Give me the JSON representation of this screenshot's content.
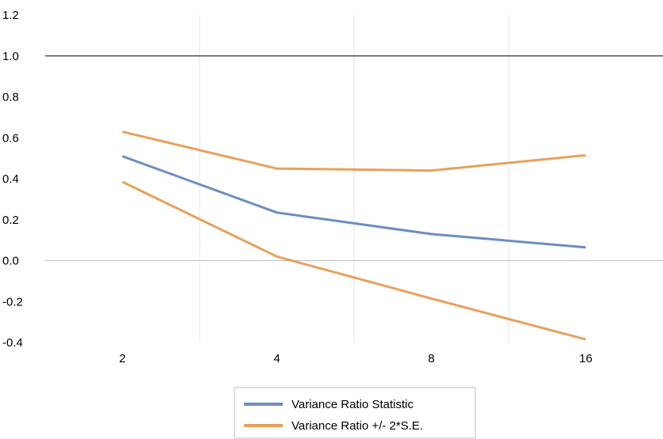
{
  "chart_data": {
    "type": "line",
    "title": "",
    "xlabel": "",
    "ylabel": "",
    "categories": [
      "2",
      "4",
      "8",
      "16"
    ],
    "ylim": [
      -0.4,
      1.2
    ],
    "yticks": [
      "1.2",
      "1.0",
      "0.8",
      "0.6",
      "0.4",
      "0.2",
      "0.0",
      "-0.2",
      "-0.4"
    ],
    "reference_lines": [
      {
        "y": 1.0,
        "color": "#000000"
      },
      {
        "y": 0.0,
        "color": "#bfbfbf"
      }
    ],
    "grid": "vertical",
    "legend_position": "bottom",
    "series": [
      {
        "name": "Variance Ratio Statistic",
        "color": "#6a8ec4",
        "values": [
          0.51,
          0.235,
          0.13,
          0.065
        ]
      },
      {
        "name": "Variance Ratio +/- 2*S.E.",
        "color": "#e8a15a",
        "values": [
          0.63,
          0.45,
          0.44,
          0.515
        ]
      },
      {
        "name": "",
        "color": "#e8a15a",
        "values": [
          0.385,
          0.02,
          -0.185,
          -0.385
        ]
      }
    ],
    "legend": [
      {
        "label": "Variance Ratio Statistic",
        "color": "#6a8ec4"
      },
      {
        "label": "Variance Ratio +/- 2*S.E.",
        "color": "#e8a15a"
      }
    ]
  }
}
